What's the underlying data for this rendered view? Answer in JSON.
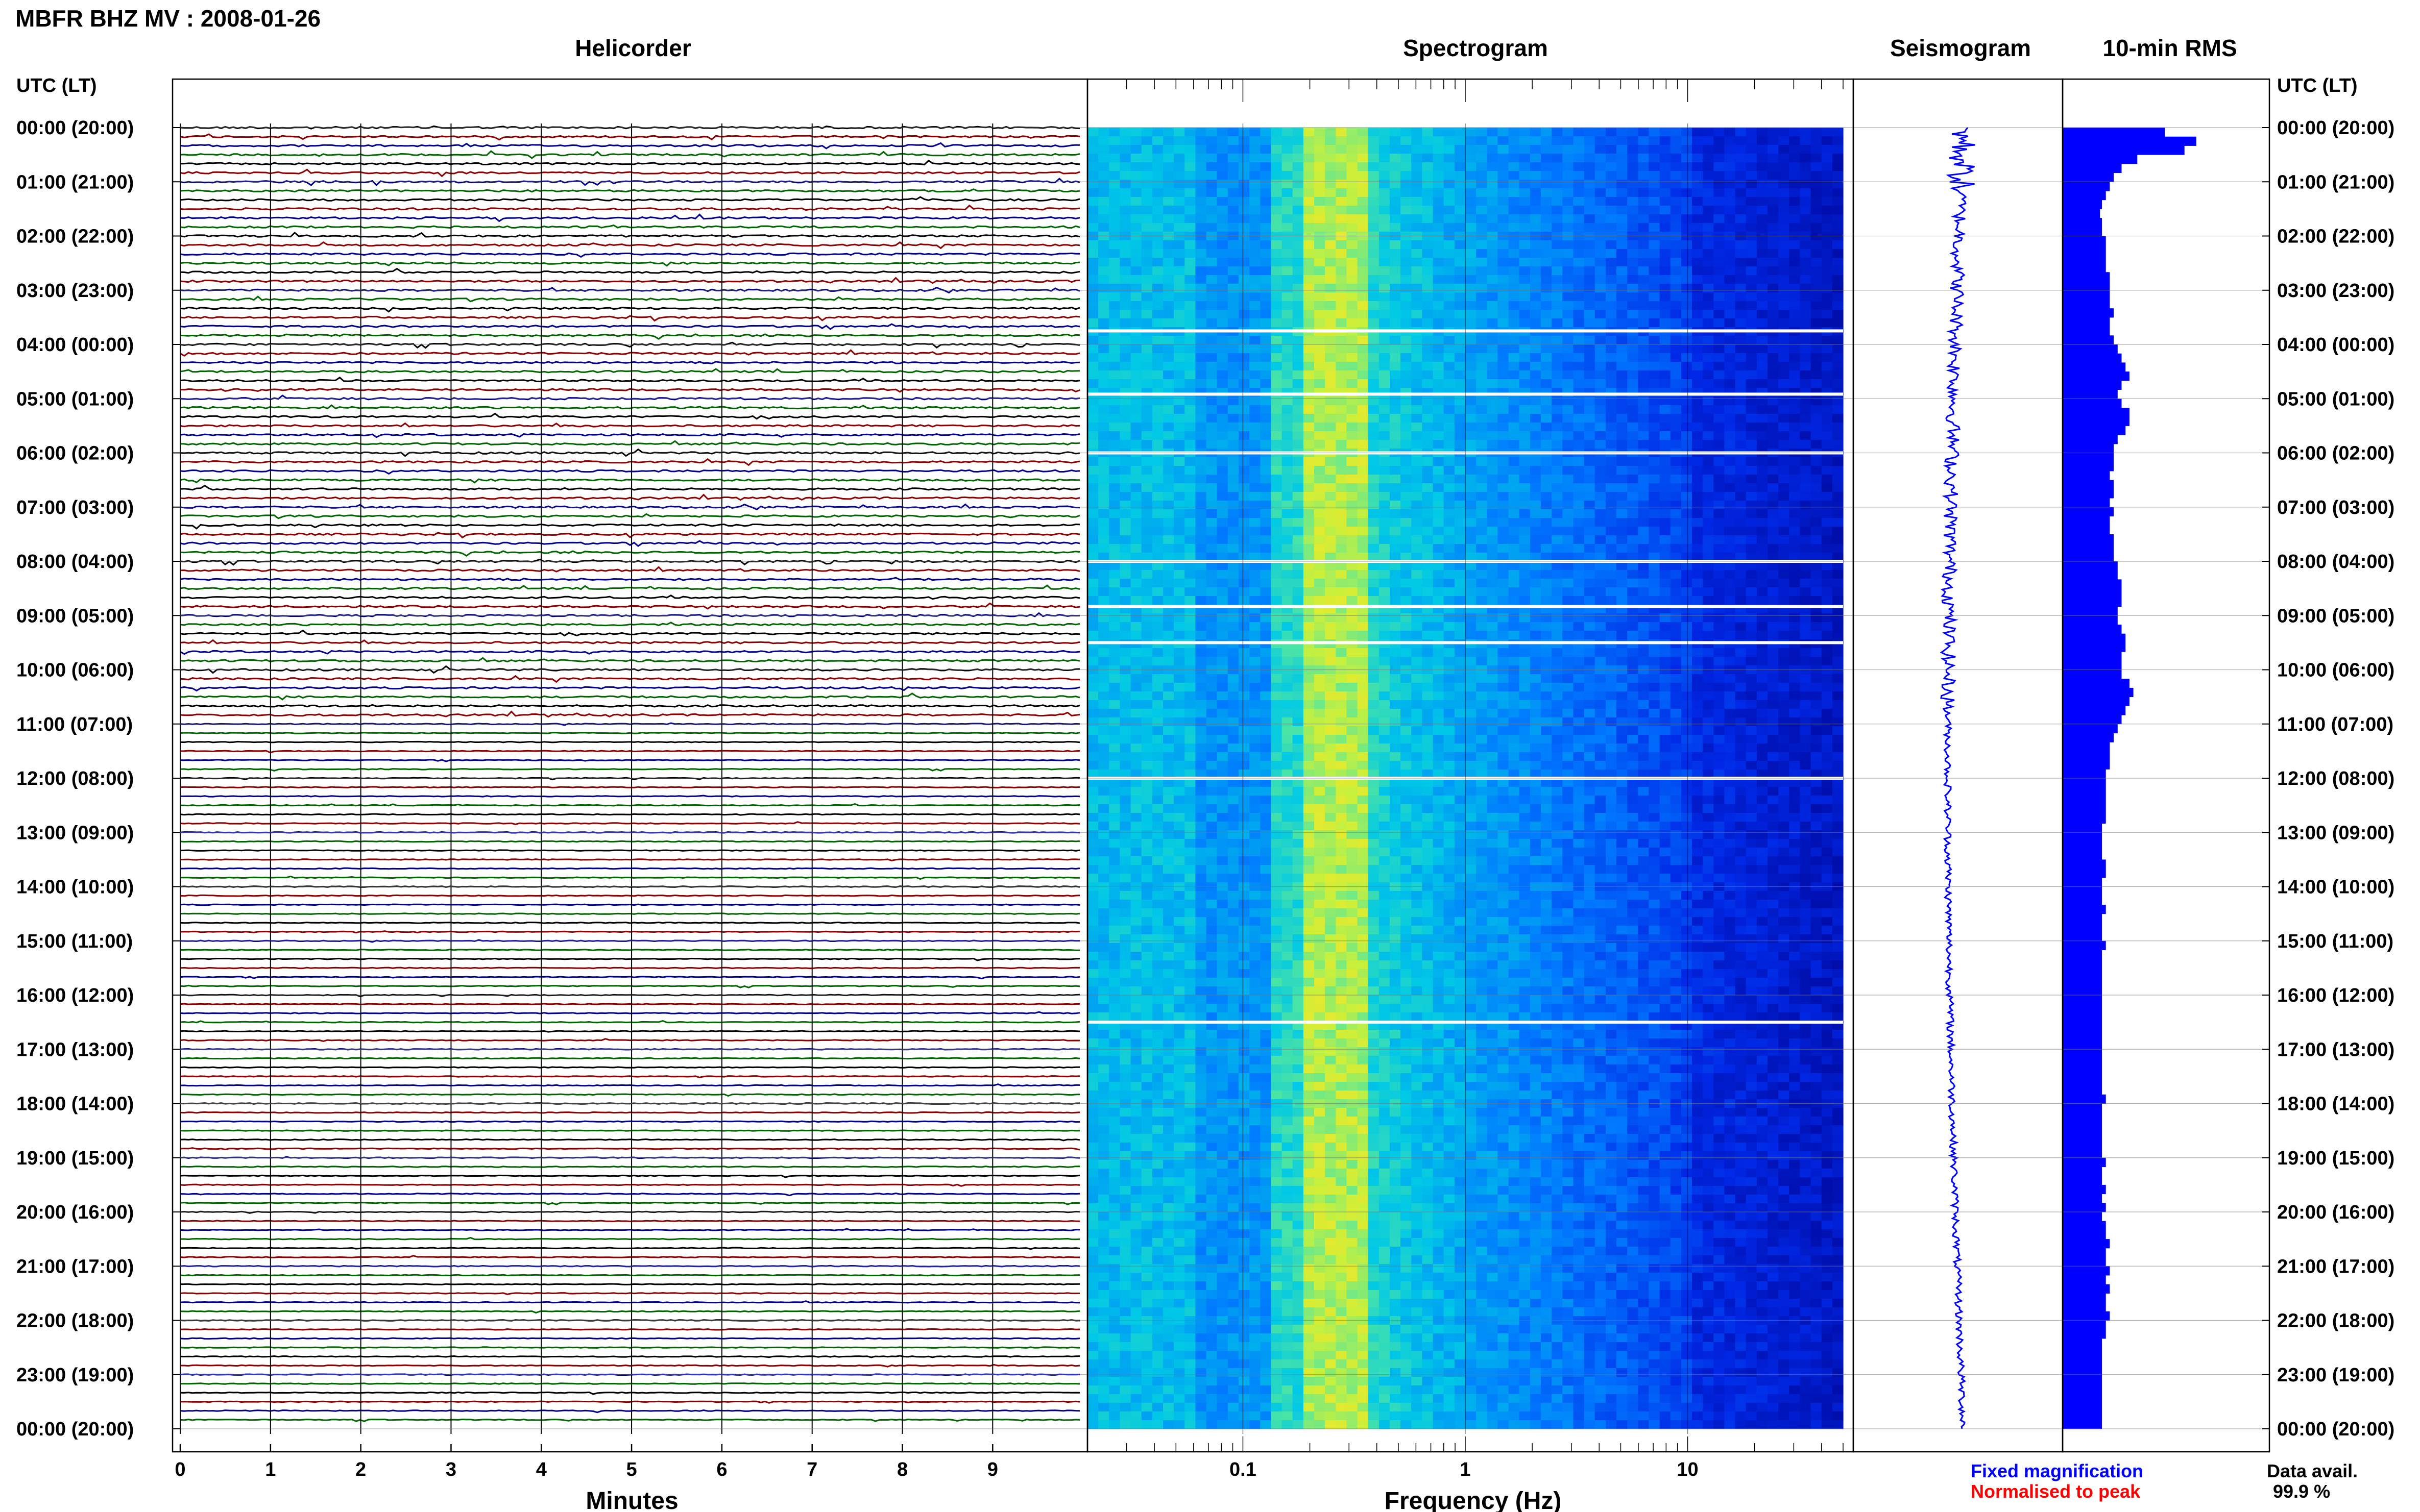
{
  "header": {
    "title": "MBFR BHZ MV : 2008-01-26",
    "panel_helicorder": "Helicorder",
    "panel_spectrogram": "Spectrogram",
    "panel_seismogram": "Seismogram",
    "panel_rms": "10-min RMS",
    "time_axis_label_left": "UTC (LT)",
    "time_axis_label_right": "UTC (LT)"
  },
  "footer": {
    "xlabel_helicorder": "Minutes",
    "xlabel_spectrogram": "Frequency (Hz)",
    "legend_fixed": "Fixed magnification",
    "legend_normalised": "Normalised to peak",
    "data_avail_label": "Data avail.",
    "data_avail_value": "99.9 %"
  },
  "colors": {
    "trace_black": "#000000",
    "trace_red": "#8b0000",
    "trace_blue": "#00008b",
    "trace_green": "#006400",
    "rms_fill": "#0000ff",
    "seismo": "#0000ff",
    "legend_fixed": "#0000ff",
    "legend_normalised": "#ff0000"
  },
  "chart_data": [
    {
      "type": "line",
      "name_panel": "Helicorder",
      "x_label": "Minutes",
      "x_ticks": [
        0,
        1,
        2,
        3,
        4,
        5,
        6,
        7,
        8,
        9
      ],
      "xlim": [
        0,
        10
      ],
      "time_labels": [
        "00:00 (20:00)",
        "01:00 (21:00)",
        "02:00 (22:00)",
        "03:00 (23:00)",
        "04:00 (00:00)",
        "05:00 (01:00)",
        "06:00 (02:00)",
        "07:00 (03:00)",
        "08:00 (04:00)",
        "09:00 (05:00)",
        "10:00 (06:00)",
        "11:00 (07:00)",
        "12:00 (08:00)",
        "13:00 (09:00)",
        "14:00 (10:00)",
        "15:00 (11:00)",
        "16:00 (12:00)",
        "17:00 (13:00)",
        "18:00 (14:00)",
        "19:00 (15:00)",
        "20:00 (16:00)",
        "21:00 (17:00)",
        "22:00 (18:00)",
        "23:00 (19:00)",
        "00:00 (20:00)"
      ],
      "trace_colors_cycle": [
        "black",
        "red",
        "blue",
        "green"
      ],
      "traces_count": 144
    },
    {
      "type": "heatmap",
      "name_panel": "Spectrogram",
      "x_label": "Frequency (Hz)",
      "x_scale": "log",
      "x_ticks": [
        0.1,
        1,
        10
      ],
      "x_tick_labels": [
        "0.1",
        "1",
        "10"
      ],
      "xlim": [
        0.02,
        50
      ],
      "peak_frequency_band_hz": [
        0.18,
        0.35
      ],
      "gap_rows_utc": [
        "03:45",
        "04:55",
        "06:00",
        "08:00",
        "08:50",
        "09:30",
        "12:00",
        "16:30"
      ]
    },
    {
      "type": "line",
      "name_panel": "Seismogram",
      "note_units": "normalised"
    },
    {
      "type": "bar",
      "name_panel": "10-min RMS",
      "orientation": "horizontal",
      "values": [
        0.52,
        0.68,
        0.62,
        0.38,
        0.3,
        0.26,
        0.24,
        0.22,
        0.2,
        0.19,
        0.2,
        0.2,
        0.22,
        0.22,
        0.22,
        0.22,
        0.24,
        0.24,
        0.24,
        0.24,
        0.26,
        0.24,
        0.24,
        0.26,
        0.28,
        0.3,
        0.32,
        0.34,
        0.3,
        0.28,
        0.3,
        0.34,
        0.34,
        0.32,
        0.28,
        0.26,
        0.26,
        0.26,
        0.24,
        0.26,
        0.26,
        0.24,
        0.26,
        0.24,
        0.24,
        0.26,
        0.26,
        0.26,
        0.28,
        0.28,
        0.3,
        0.3,
        0.3,
        0.28,
        0.28,
        0.3,
        0.32,
        0.32,
        0.3,
        0.3,
        0.3,
        0.34,
        0.36,
        0.34,
        0.32,
        0.3,
        0.28,
        0.26,
        0.24,
        0.24,
        0.24,
        0.22,
        0.22,
        0.22,
        0.22,
        0.22,
        0.22,
        0.2,
        0.2,
        0.2,
        0.2,
        0.22,
        0.22,
        0.2,
        0.2,
        0.2,
        0.22,
        0.2,
        0.2,
        0.2,
        0.22,
        0.2,
        0.2,
        0.2,
        0.2,
        0.2,
        0.2,
        0.2,
        0.2,
        0.2,
        0.2,
        0.2,
        0.2,
        0.2,
        0.2,
        0.2,
        0.2,
        0.22,
        0.2,
        0.2,
        0.2,
        0.2,
        0.2,
        0.2,
        0.22,
        0.2,
        0.2,
        0.22,
        0.2,
        0.22,
        0.2,
        0.22,
        0.22,
        0.24,
        0.22,
        0.22,
        0.24,
        0.22,
        0.24,
        0.22,
        0.22,
        0.24,
        0.22,
        0.22,
        0.2,
        0.2,
        0.2,
        0.2,
        0.2,
        0.2,
        0.2,
        0.2,
        0.2,
        0.2
      ]
    }
  ]
}
